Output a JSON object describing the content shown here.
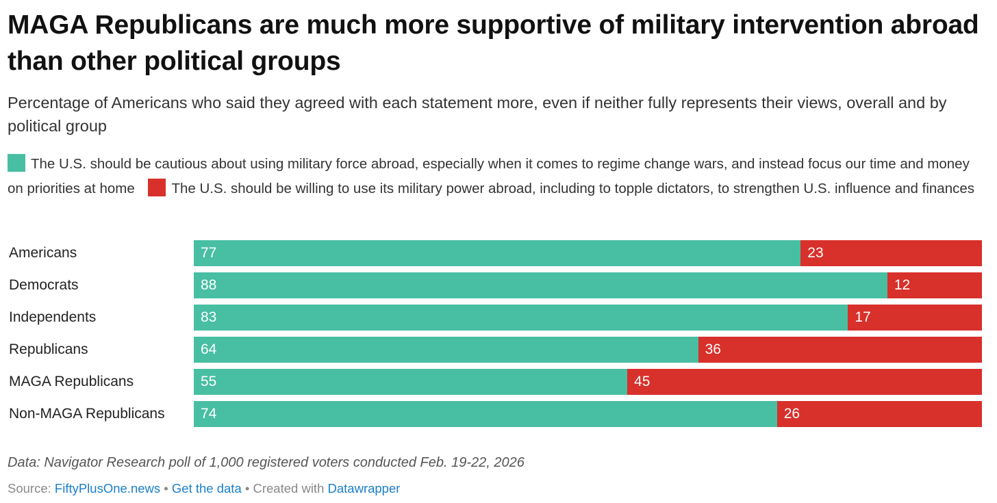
{
  "title": "MAGA Republicans are much more supportive of military intervention abroad than other political groups",
  "subtitle": "Percentage of Americans who said they agreed with each statement more, even if neither fully represents their views, overall and by political group",
  "colors": {
    "cautious": "#48bea3",
    "willing": "#d8302b"
  },
  "chart_data": {
    "type": "bar",
    "stacked": true,
    "orientation": "horizontal",
    "categories": [
      "Americans",
      "Democrats",
      "Independents",
      "Republicans",
      "MAGA Republicans",
      "Non-MAGA Republicans"
    ],
    "series": [
      {
        "name": "The U.S. should be cautious about using military force abroad, especially when it comes to regime change wars, and instead focus our time and money on priorities at home",
        "values": [
          77,
          88,
          83,
          64,
          55,
          74
        ]
      },
      {
        "name": "The U.S. should be willing to use its military power abroad, including to topple dictators, to strengthen U.S. influence and finances",
        "values": [
          23,
          12,
          17,
          36,
          45,
          26
        ]
      }
    ],
    "xlim": [
      0,
      100
    ],
    "legend": "top"
  },
  "footer": {
    "note": "Data: Navigator Research poll of 1,000 registered voters conducted Feb. 19-22, 2026",
    "source_label": "Source:",
    "source_link": "FiftyPlusOne.news",
    "sep": "•",
    "get_data": "Get the data",
    "created": "Created with",
    "datawrapper": "Datawrapper"
  }
}
